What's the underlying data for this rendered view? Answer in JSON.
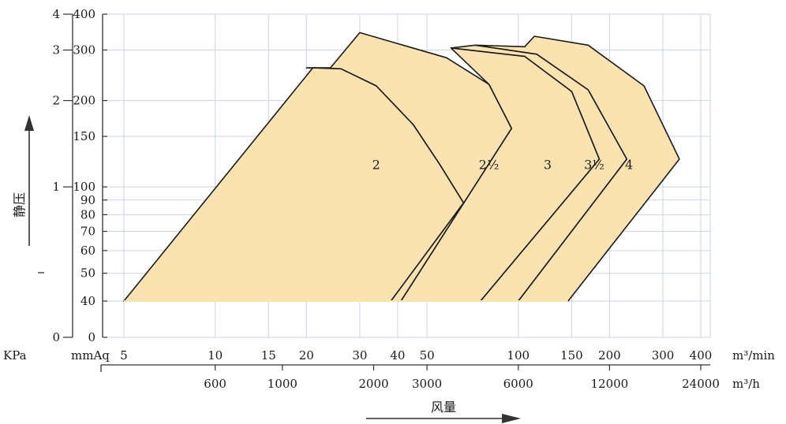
{
  "chart_data": {
    "type": "area",
    "title": "",
    "xlabel": "风量",
    "ylabel": "静压",
    "scale": "log-log",
    "grid": true,
    "colors": {
      "fill": "#fae3b1",
      "curve": "#1a1a1a",
      "grid": "#c9d3ea",
      "axis": "#333333"
    },
    "x_axis_primary": {
      "unit": "m³/min",
      "ticks": [
        5,
        10,
        15,
        20,
        30,
        40,
        50,
        100,
        150,
        200,
        300,
        400
      ]
    },
    "x_axis_secondary": {
      "unit": "m³/h",
      "ticks": [
        600,
        1000,
        2000,
        3000,
        6000,
        12000,
        24000
      ]
    },
    "y_axis_mmaq": {
      "unit": "mmAq",
      "ticks": [
        0,
        40,
        50,
        60,
        70,
        80,
        90,
        100,
        150,
        200,
        300,
        400
      ]
    },
    "y_axis_kpa": {
      "unit": "KPa",
      "ticks": [
        0,
        1,
        2,
        3,
        4
      ]
    },
    "series": [
      {
        "name": "2",
        "label_at": {
          "x": 34,
          "y": 120
        },
        "points": [
          [
            5,
            40
          ],
          [
            21,
            260
          ],
          [
            26,
            258
          ],
          [
            34,
            225
          ],
          [
            45,
            165
          ],
          [
            55,
            120
          ],
          [
            66,
            88
          ],
          [
            38,
            40
          ]
        ]
      },
      {
        "name": "2½",
        "label_at": {
          "x": 80,
          "y": 120
        },
        "points": [
          [
            41,
            40
          ],
          [
            95,
            160
          ],
          [
            80,
            228
          ],
          [
            58,
            282
          ],
          [
            30,
            345
          ],
          [
            24,
            260
          ],
          [
            20,
            260
          ],
          [
            26,
            258
          ],
          [
            34,
            225
          ],
          [
            45,
            165
          ],
          [
            55,
            120
          ],
          [
            66,
            88
          ],
          [
            38,
            40
          ]
        ]
      },
      {
        "name": "3",
        "label_at": {
          "x": 125,
          "y": 120
        },
        "points": [
          [
            75,
            40
          ],
          [
            185,
            125
          ],
          [
            150,
            215
          ],
          [
            105,
            285
          ],
          [
            60,
            305
          ],
          [
            80,
            228
          ],
          [
            95,
            160
          ],
          [
            41,
            40
          ]
        ]
      },
      {
        "name": "3½",
        "label_at": {
          "x": 178,
          "y": 120
        },
        "points": [
          [
            100,
            40
          ],
          [
            228,
            125
          ],
          [
            170,
            218
          ],
          [
            115,
            290
          ],
          [
            72,
            312
          ],
          [
            60,
            305
          ],
          [
            105,
            285
          ],
          [
            150,
            215
          ],
          [
            185,
            125
          ],
          [
            75,
            40
          ]
        ]
      },
      {
        "name": "4",
        "label_at": {
          "x": 232,
          "y": 120
        },
        "points": [
          [
            146,
            40
          ],
          [
            340,
            125
          ],
          [
            260,
            225
          ],
          [
            170,
            312
          ],
          [
            113,
            335
          ],
          [
            105,
            308
          ],
          [
            72,
            312
          ],
          [
            115,
            290
          ],
          [
            170,
            218
          ],
          [
            228,
            125
          ],
          [
            100,
            40
          ]
        ]
      }
    ],
    "labels": {
      "kpa": "KPa",
      "mmaq": "mmAq"
    }
  }
}
